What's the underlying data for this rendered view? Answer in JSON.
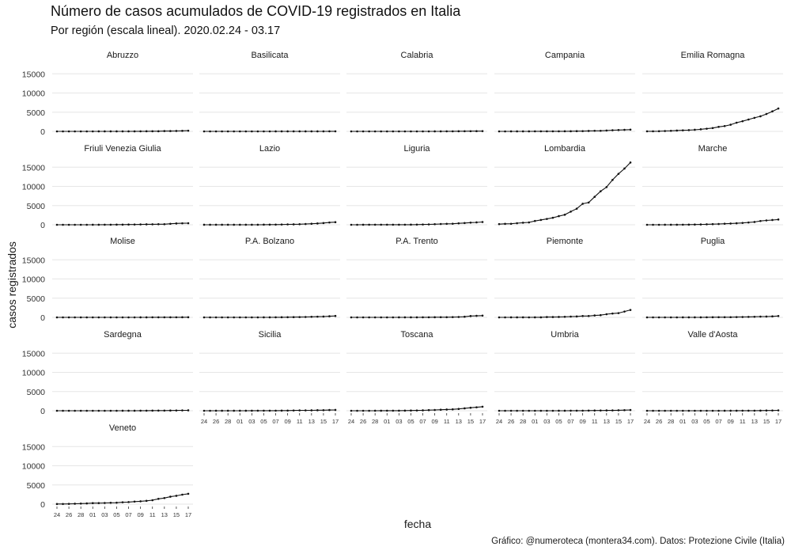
{
  "chart_data": {
    "type": "line",
    "title": "Número de casos acumulados de COVID-19 registrados en Italia",
    "subtitle": "Por región (escala lineal). 2020.02.24 - 03.17",
    "xlabel": "fecha",
    "ylabel": "casos registrados",
    "caption": "Gráfico: @numeroteca (montera34.com). Datos: Protezione Civile (Italia)",
    "ylim": [
      0,
      16500
    ],
    "y_ticks": [
      0,
      5000,
      10000,
      15000
    ],
    "x": [
      "2020-02-24",
      "2020-02-25",
      "2020-02-26",
      "2020-02-27",
      "2020-02-28",
      "2020-02-29",
      "2020-03-01",
      "2020-03-02",
      "2020-03-03",
      "2020-03-04",
      "2020-03-05",
      "2020-03-06",
      "2020-03-07",
      "2020-03-08",
      "2020-03-09",
      "2020-03-10",
      "2020-03-11",
      "2020-03-12",
      "2020-03-13",
      "2020-03-14",
      "2020-03-15",
      "2020-03-16",
      "2020-03-17"
    ],
    "x_tick_labels": [
      "24",
      "26",
      "28",
      "01",
      "03",
      "05",
      "07",
      "09",
      "11",
      "13",
      "15",
      "17"
    ],
    "grid": true,
    "facets": [
      {
        "name": "Abruzzo",
        "values": [
          0,
          0,
          0,
          1,
          1,
          1,
          2,
          5,
          6,
          6,
          7,
          9,
          9,
          11,
          17,
          30,
          38,
          38,
          84,
          89,
          112,
          137,
          176
        ]
      },
      {
        "name": "Basilicata",
        "values": [
          0,
          0,
          0,
          0,
          0,
          0,
          0,
          0,
          0,
          0,
          0,
          1,
          3,
          4,
          6,
          6,
          8,
          8,
          9,
          10,
          10,
          13,
          17
        ]
      },
      {
        "name": "Calabria",
        "values": [
          0,
          0,
          0,
          0,
          0,
          0,
          0,
          0,
          1,
          1,
          1,
          1,
          1,
          1,
          3,
          9,
          19,
          19,
          36,
          47,
          53,
          60,
          69
        ]
      },
      {
        "name": "Campania",
        "values": [
          0,
          0,
          3,
          3,
          4,
          4,
          13,
          14,
          17,
          17,
          22,
          30,
          31,
          55,
          72,
          115,
          154,
          154,
          220,
          300,
          352,
          400,
          460
        ]
      },
      {
        "name": "Emilia Romagna",
        "values": [
          18,
          26,
          47,
          97,
          145,
          217,
          285,
          335,
          420,
          544,
          698,
          870,
          1180,
          1386,
          1739,
          2263,
          2644,
          3093,
          3532,
          3931,
          4525,
          5214,
          5968
        ]
      },
      {
        "name": "Friuli Venezia Giulia",
        "values": [
          0,
          0,
          0,
          1,
          1,
          2,
          9,
          10,
          18,
          18,
          31,
          38,
          55,
          71,
          92,
          116,
          126,
          148,
          148,
          258,
          347,
          386,
          408
        ]
      },
      {
        "name": "Lazio",
        "values": [
          3,
          3,
          3,
          3,
          3,
          6,
          6,
          6,
          6,
          8,
          30,
          34,
          45,
          71,
          102,
          116,
          150,
          200,
          265,
          342,
          449,
          593,
          676
        ]
      },
      {
        "name": "Liguria",
        "values": [
          0,
          1,
          11,
          19,
          21,
          24,
          25,
          21,
          23,
          25,
          30,
          42,
          76,
          101,
          154,
          208,
          250,
          276,
          379,
          458,
          559,
          624,
          723
        ]
      },
      {
        "name": "Lombardia",
        "values": [
          172,
          240,
          258,
          403,
          531,
          615,
          984,
          1254,
          1520,
          1820,
          2251,
          2612,
          3420,
          4189,
          5469,
          5791,
          7280,
          8725,
          9820,
          11685,
          13272,
          14649,
          16220
        ]
      },
      {
        "name": "Marche",
        "values": [
          0,
          0,
          1,
          6,
          6,
          11,
          25,
          31,
          61,
          84,
          124,
          163,
          201,
          271,
          323,
          394,
          479,
          592,
          725,
          981,
          1133,
          1242,
          1371
        ]
      },
      {
        "name": "Molise",
        "values": [
          0,
          0,
          0,
          0,
          0,
          0,
          0,
          0,
          0,
          0,
          0,
          0,
          1,
          2,
          5,
          9,
          16,
          16,
          16,
          18,
          24,
          29,
          34
        ]
      },
      {
        "name": "P.A. Bolzano",
        "values": [
          0,
          0,
          0,
          0,
          1,
          1,
          1,
          1,
          1,
          1,
          4,
          9,
          16,
          30,
          45,
          62,
          77,
          103,
          152,
          183,
          212,
          290,
          370
        ]
      },
      {
        "name": "P.A. Trento",
        "values": [
          0,
          0,
          0,
          0,
          0,
          0,
          1,
          1,
          3,
          4,
          5,
          7,
          17,
          27,
          35,
          42,
          45,
          69,
          105,
          164,
          348,
          400,
          457
        ]
      },
      {
        "name": "Piemonte",
        "values": [
          0,
          0,
          3,
          3,
          11,
          0,
          11,
          11,
          82,
          82,
          108,
          143,
          207,
          243,
          350,
          360,
          501,
          580,
          815,
          993,
          1111,
          1516,
          1930
        ]
      },
      {
        "name": "Puglia",
        "values": [
          0,
          0,
          0,
          1,
          1,
          1,
          3,
          6,
          6,
          10,
          24,
          37,
          41,
          44,
          50,
          76,
          100,
          130,
          156,
          197,
          210,
          264,
          357
        ]
      },
      {
        "name": "Sardegna",
        "values": [
          0,
          0,
          0,
          0,
          0,
          0,
          0,
          0,
          2,
          2,
          2,
          3,
          7,
          9,
          17,
          21,
          31,
          39,
          46,
          61,
          74,
          95,
          113
        ]
      },
      {
        "name": "Sicilia",
        "values": [
          0,
          0,
          3,
          3,
          3,
          4,
          9,
          9,
          12,
          18,
          18,
          18,
          24,
          38,
          48,
          78,
          101,
          102,
          113,
          137,
          149,
          191,
          216
        ]
      },
      {
        "name": "Toscana",
        "values": [
          0,
          2,
          2,
          2,
          8,
          11,
          13,
          19,
          19,
          38,
          61,
          79,
          113,
          166,
          208,
          264,
          320,
          364,
          470,
          630,
          781,
          903,
          1055
        ]
      },
      {
        "name": "Umbria",
        "values": [
          0,
          0,
          0,
          0,
          0,
          0,
          0,
          1,
          2,
          2,
          5,
          9,
          16,
          21,
          28,
          40,
          62,
          72,
          82,
          92,
          128,
          157,
          197
        ]
      },
      {
        "name": "Valle d'Aosta",
        "values": [
          0,
          0,
          0,
          0,
          0,
          0,
          0,
          0,
          0,
          0,
          2,
          2,
          2,
          5,
          8,
          11,
          15,
          15,
          20,
          34,
          61,
          71,
          103
        ]
      },
      {
        "name": "Veneto",
        "values": [
          32,
          43,
          71,
          111,
          151,
          191,
          263,
          273,
          307,
          360,
          380,
          488,
          543,
          670,
          744,
          856,
          1023,
          1384,
          1595,
          1937,
          2172,
          2473,
          2704
        ]
      }
    ]
  }
}
